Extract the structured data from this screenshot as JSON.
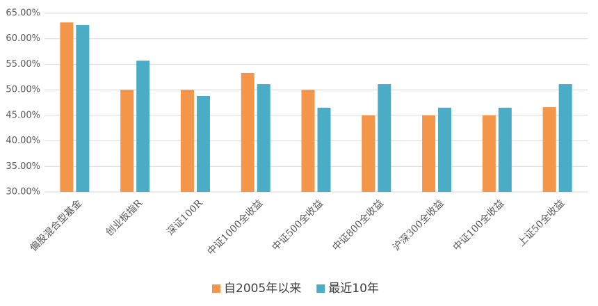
{
  "chart_data": {
    "type": "bar",
    "categories": [
      "偏股混合型基金",
      "创业板指R",
      "深证100R",
      "中证1000全收益",
      "中证500全收益",
      "中证800全收益",
      "沪深300全收益",
      "中证100全收益",
      "上证50全收益"
    ],
    "series": [
      {
        "name": "自2005年以来",
        "color": "#f4964a",
        "values": [
          63.2,
          50.0,
          50.0,
          53.3,
          50.0,
          45.0,
          45.0,
          45.0,
          46.6
        ]
      },
      {
        "name": "最近10年",
        "color": "#4bacc6",
        "values": [
          62.7,
          55.7,
          48.8,
          51.1,
          46.5,
          51.1,
          46.5,
          46.5,
          51.1
        ]
      }
    ],
    "ylim": [
      30,
      65
    ],
    "yticks": [
      {
        "value": 30,
        "label": "30.00%"
      },
      {
        "value": 35,
        "label": "35.00%"
      },
      {
        "value": 40,
        "label": "40.00%"
      },
      {
        "value": 45,
        "label": "45.00%"
      },
      {
        "value": 50,
        "label": "50.00%"
      },
      {
        "value": 55,
        "label": "55.00%"
      },
      {
        "value": 60,
        "label": "60.00%"
      },
      {
        "value": 65,
        "label": "65.00%"
      }
    ],
    "grid": true,
    "legend": "bottom"
  }
}
